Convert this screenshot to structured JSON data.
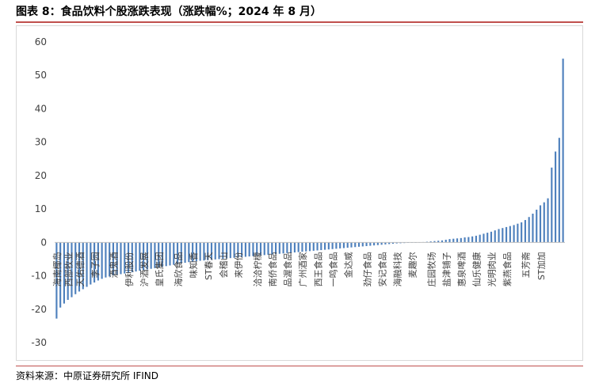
{
  "header": {
    "title": "图表 8：食品饮料个股涨跌表现（涨跌幅%；2024 年 8 月）"
  },
  "footer": {
    "source": "资料来源：中原证券研究所    IFIND"
  },
  "colors": {
    "bar": "#4f81bd",
    "accent": "#c0504d",
    "grid": "#d9d9d9"
  },
  "chart_data": {
    "type": "bar",
    "ylim": [
      -30,
      60
    ],
    "yticks": [
      60,
      50,
      40,
      30,
      20,
      10,
      0,
      -10,
      -20,
      -30
    ],
    "grid": false,
    "xlabel": "",
    "ylabel": "",
    "category_labels": [
      {
        "index": 1,
        "text": "海南椰岛"
      },
      {
        "index": 4,
        "text": "西部牧业"
      },
      {
        "index": 7,
        "text": "天佑德酒"
      },
      {
        "index": 11,
        "text": "李子园"
      },
      {
        "index": 16,
        "text": "酒鬼酒"
      },
      {
        "index": 20,
        "text": "伊利股份"
      },
      {
        "index": 24,
        "text": "沪酒发展"
      },
      {
        "index": 28,
        "text": "皇氏集团"
      },
      {
        "index": 33,
        "text": "海欣食品"
      },
      {
        "index": 37,
        "text": "味知香"
      },
      {
        "index": 41,
        "text": "ST春天"
      },
      {
        "index": 45,
        "text": "会稽山"
      },
      {
        "index": 49,
        "text": "来伊份"
      },
      {
        "index": 54,
        "text": "洽洽柠檬"
      },
      {
        "index": 58,
        "text": "南侨食品"
      },
      {
        "index": 62,
        "text": "品渥食品"
      },
      {
        "index": 66,
        "text": "广州酒家"
      },
      {
        "index": 70,
        "text": "西王食品"
      },
      {
        "index": 74,
        "text": "一鸣食品"
      },
      {
        "index": 78,
        "text": "金达威"
      },
      {
        "index": 83,
        "text": "劲仔食品"
      },
      {
        "index": 87,
        "text": "安记食品"
      },
      {
        "index": 91,
        "text": "海融科技"
      },
      {
        "index": 95,
        "text": "麦趣尔"
      },
      {
        "index": 100,
        "text": "庄园牧场"
      },
      {
        "index": 104,
        "text": "盐津铺子"
      },
      {
        "index": 108,
        "text": "惠泉啤酒"
      },
      {
        "index": 112,
        "text": "仙乐健康"
      },
      {
        "index": 116,
        "text": "光明肉业"
      },
      {
        "index": 120,
        "text": "紫燕食品"
      },
      {
        "index": 125,
        "text": "五芳斋"
      },
      {
        "index": 129,
        "text": "ST加加"
      }
    ],
    "values": [
      -22.8,
      -19.5,
      -18.3,
      -17.2,
      -16.4,
      -15.5,
      -14.7,
      -14.0,
      -13.3,
      -12.6,
      -12.0,
      -11.4,
      -10.9,
      -10.5,
      -10.2,
      -9.9,
      -9.7,
      -9.5,
      -9.3,
      -9.1,
      -8.9,
      -8.7,
      -8.5,
      -8.3,
      -8.1,
      -7.9,
      -7.7,
      -7.5,
      -7.3,
      -7.1,
      -6.9,
      -6.7,
      -6.5,
      -6.3,
      -6.1,
      -5.9,
      -5.7,
      -5.6,
      -5.5,
      -5.4,
      -5.3,
      -5.2,
      -5.1,
      -5.0,
      -4.9,
      -4.8,
      -4.7,
      -4.6,
      -4.5,
      -4.4,
      -4.3,
      -4.2,
      -4.1,
      -4.0,
      -3.9,
      -3.8,
      -3.7,
      -3.6,
      -3.5,
      -3.4,
      -3.3,
      -3.2,
      -3.1,
      -3.0,
      -2.9,
      -2.8,
      -2.7,
      -2.6,
      -2.5,
      -2.4,
      -2.3,
      -2.2,
      -2.1,
      -2.0,
      -1.9,
      -1.8,
      -1.7,
      -1.6,
      -1.5,
      -1.4,
      -1.3,
      -1.2,
      -1.1,
      -1.0,
      -0.9,
      -0.8,
      -0.7,
      -0.6,
      -0.5,
      -0.4,
      -0.3,
      -0.25,
      -0.2,
      -0.15,
      -0.1,
      -0.05,
      0.05,
      0.1,
      0.2,
      0.3,
      0.4,
      0.5,
      0.6,
      0.8,
      1.0,
      1.1,
      1.2,
      1.3,
      1.5,
      1.6,
      1.8,
      2.0,
      2.3,
      2.6,
      2.9,
      3.2,
      3.6,
      4.0,
      4.3,
      4.6,
      4.9,
      5.2,
      5.6,
      6.0,
      6.7,
      7.6,
      8.6,
      9.8,
      11.1,
      12.0,
      13.2,
      22.4,
      27.2,
      31.3,
      55.0
    ]
  }
}
